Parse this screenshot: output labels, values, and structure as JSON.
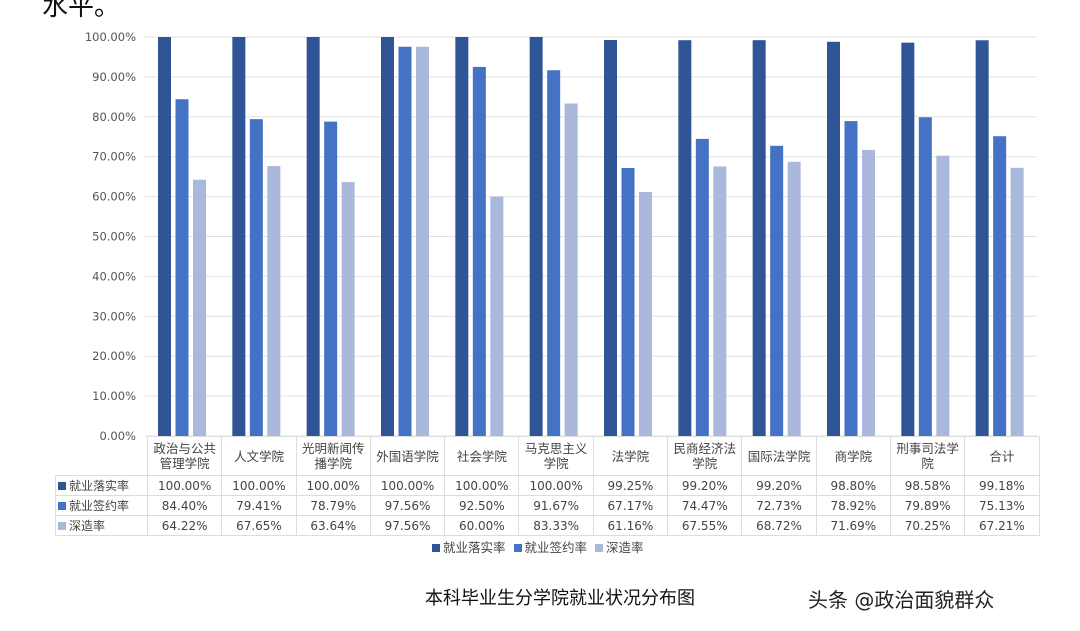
{
  "top_text": "水平。",
  "caption": "本科毕业生分学院就业状况分布图",
  "watermark": "头条 @政治面貌群众",
  "chart_data": {
    "type": "bar",
    "categories": [
      "政治与公共管理学院",
      "人文学院",
      "光明新闻传播学院",
      "外国语学院",
      "社会学院",
      "马克思主义学院",
      "法学院",
      "民商经济法学院",
      "国际法学院",
      "商学院",
      "刑事司法学院",
      "合计"
    ],
    "series": [
      {
        "name": "就业落实率",
        "color": "#2f5597",
        "values": [
          100.0,
          100.0,
          100.0,
          100.0,
          100.0,
          100.0,
          99.25,
          99.2,
          99.2,
          98.8,
          98.58,
          99.18
        ]
      },
      {
        "name": "就业签约率",
        "color": "#4472c4",
        "values": [
          84.4,
          79.41,
          78.79,
          97.56,
          92.5,
          91.67,
          67.17,
          74.47,
          72.73,
          78.92,
          79.89,
          75.13
        ]
      },
      {
        "name": "深造率",
        "color": "#a9b8db",
        "values": [
          64.22,
          67.65,
          63.64,
          97.56,
          60.0,
          83.33,
          61.16,
          67.55,
          68.72,
          71.69,
          70.25,
          67.21
        ]
      }
    ],
    "ylim": [
      0,
      100
    ],
    "yticks": [
      "0.00%",
      "10.00%",
      "20.00%",
      "30.00%",
      "40.00%",
      "50.00%",
      "60.00%",
      "70.00%",
      "80.00%",
      "90.00%",
      "100.00%"
    ],
    "grid": true,
    "legend": "bottom",
    "data_table": true
  }
}
